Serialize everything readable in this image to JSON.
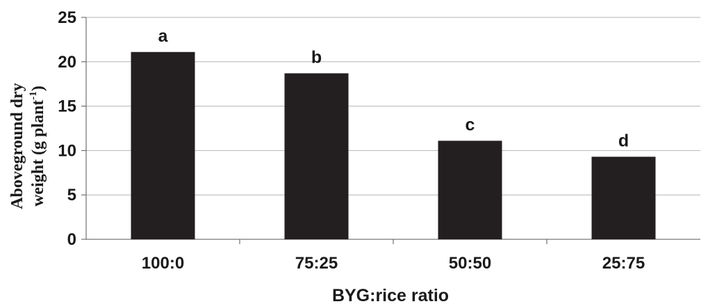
{
  "chart_data": {
    "type": "bar",
    "categories": [
      "100:0",
      "75:25",
      "50:50",
      "25:75"
    ],
    "values": [
      21.1,
      18.7,
      11.1,
      9.3
    ],
    "data_labels": [
      "a",
      "b",
      "c",
      "d"
    ],
    "xlabel": "BYG:rice ratio",
    "ylabel_line1": "Aboveground dry",
    "ylabel_line2_main": "weight (g plant",
    "ylabel_line2_sup": "-1",
    "ylabel_line2_end": ")",
    "ylim": [
      0,
      25
    ],
    "yticks": [
      "0",
      "5",
      "10",
      "15",
      "20",
      "25"
    ],
    "grid": true,
    "bar_color": "#231f20",
    "grid_color": "#b5b5b5"
  }
}
